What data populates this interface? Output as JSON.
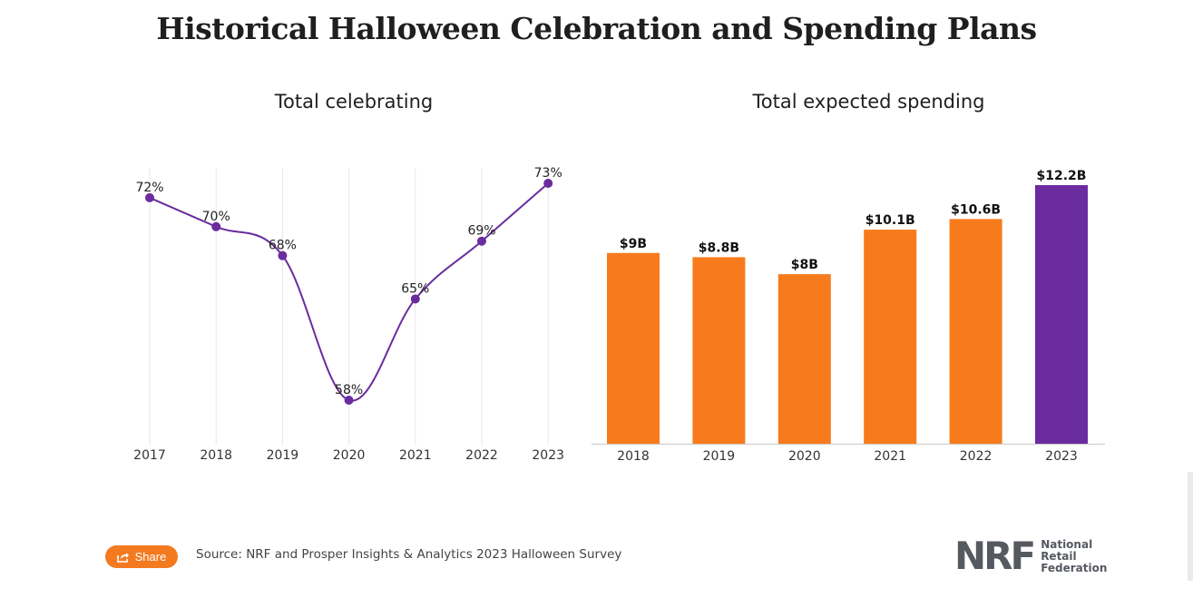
{
  "page": {
    "title": "Historical Halloween Celebration and Spending Plans",
    "source": "Source: NRF and Prosper Insights & Analytics 2023 Halloween Survey",
    "share_label": "Share",
    "logo": {
      "mark": "NRF",
      "line1": "National",
      "line2": "Retail",
      "line3": "Federation"
    }
  },
  "colors": {
    "line": "#6a2c9e",
    "bar_default": "#f77b1c",
    "bar_highlight": "#6a2c9e",
    "share": "#f47a20"
  },
  "chart_data": [
    {
      "type": "line",
      "title": "Total celebrating",
      "x": [
        "2017",
        "2018",
        "2019",
        "2020",
        "2021",
        "2022",
        "2023"
      ],
      "values": [
        72,
        70,
        68,
        58,
        65,
        69,
        73
      ],
      "labels": [
        "72%",
        "70%",
        "68%",
        "58%",
        "65%",
        "69%",
        "73%"
      ],
      "unit": "%",
      "ylim": [
        55,
        74
      ],
      "grid": "vertical",
      "line_color": "#6a2c9e"
    },
    {
      "type": "bar",
      "title": "Total expected spending",
      "categories": [
        "2018",
        "2019",
        "2020",
        "2021",
        "2022",
        "2023"
      ],
      "values": [
        9.0,
        8.8,
        8.0,
        10.1,
        10.6,
        12.2
      ],
      "labels": [
        "$9B",
        "$8.8B",
        "$8B",
        "$10.1B",
        "$10.6B",
        "$12.2B"
      ],
      "unit": "$B",
      "ylim": [
        0,
        12.2
      ],
      "highlight": "2023"
    }
  ]
}
